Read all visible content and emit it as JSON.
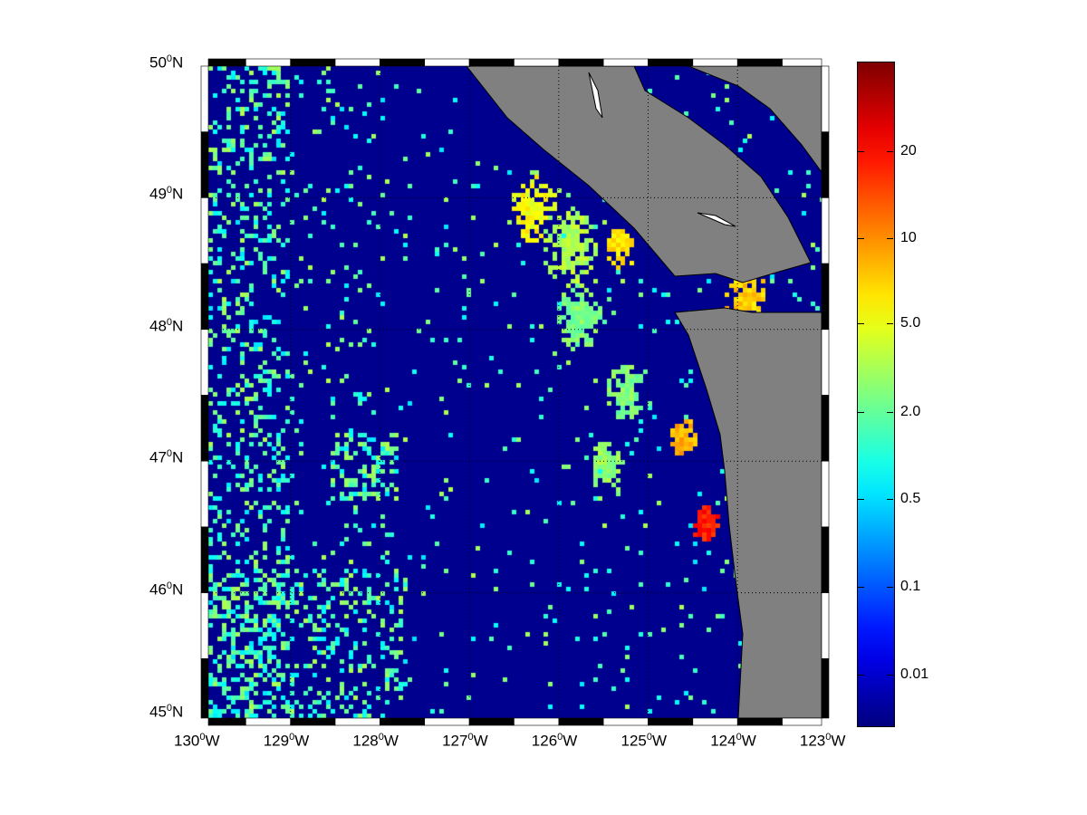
{
  "map": {
    "lon_range": [
      -130,
      -123
    ],
    "lat_range": [
      45,
      50
    ],
    "ocean_color": "#00008f",
    "land_color": "#808080",
    "lon_labels": [
      {
        "deg": "130",
        "suf": "W"
      },
      {
        "deg": "129",
        "suf": "W"
      },
      {
        "deg": "128",
        "suf": "W"
      },
      {
        "deg": "127",
        "suf": "W"
      },
      {
        "deg": "126",
        "suf": "W"
      },
      {
        "deg": "125",
        "suf": "W"
      },
      {
        "deg": "124",
        "suf": "W"
      },
      {
        "deg": "123",
        "suf": "W"
      }
    ],
    "lat_labels": [
      {
        "deg": "50",
        "suf": "N"
      },
      {
        "deg": "49",
        "suf": "N"
      },
      {
        "deg": "48",
        "suf": "N"
      },
      {
        "deg": "47",
        "suf": "N"
      },
      {
        "deg": "46",
        "suf": "N"
      },
      {
        "deg": "45",
        "suf": "N"
      }
    ],
    "grid": "dotted",
    "frame": "alternating black-white"
  },
  "colorbar": {
    "colormap": "jet",
    "scale": "log",
    "ticks": [
      "20",
      "10",
      "5.0",
      "2.0",
      "0.5",
      "0.1",
      "0.01"
    ]
  }
}
